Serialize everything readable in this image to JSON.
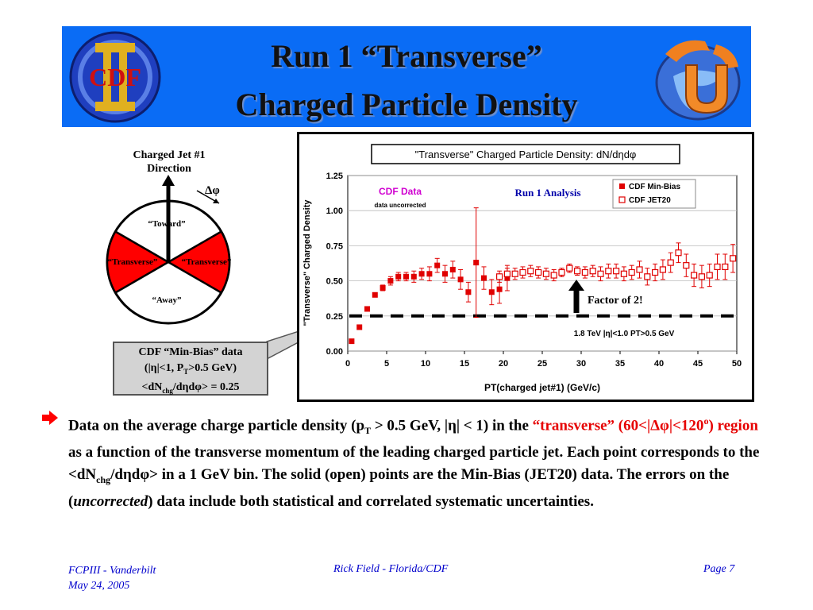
{
  "title": {
    "line1": "Run 1 “Transverse”",
    "line2": "Charged Particle Density"
  },
  "diagram": {
    "jet_direction_line1": "Charged Jet #1",
    "jet_direction_line2": "Direction",
    "dphi": "Δφ",
    "toward": "“Toward”",
    "away": "“Away”",
    "transverse_left": "“Transverse”",
    "transverse_right": "“Transverse”"
  },
  "callout": {
    "line1": "CDF “Min-Bias” data",
    "line2a": "(|η|<1, P",
    "line2sub": "T",
    "line2b": ">0.5 GeV)",
    "line3a": "<dN",
    "line3sub": "chg",
    "line3b": "/dηdφ> = 0.25"
  },
  "chart_data": {
    "type": "scatter",
    "title": "\"Transverse\" Charged Particle Density: dN/dηdφ",
    "xlabel": "PT(charged jet#1)  (GeV/c)",
    "ylabel": "\"Transverse\" Charged Density",
    "xlim": [
      0,
      50
    ],
    "ylim": [
      0,
      1.25
    ],
    "xticks": [
      "0",
      "5",
      "10",
      "15",
      "20",
      "25",
      "30",
      "35",
      "40",
      "45",
      "50"
    ],
    "yticks": [
      "0.00",
      "0.25",
      "0.50",
      "0.75",
      "1.00",
      "1.25"
    ],
    "legend": [
      "CDF Min-Bias",
      "CDF JET20"
    ],
    "legend_position": "top-right",
    "annotations": {
      "cdf_data": "CDF Data",
      "uncorrected": "data uncorrected",
      "run1": "Run 1 Analysis",
      "factor": "Factor of 2!",
      "cuts": "1.8 TeV |η|<1.0 PT>0.5 GeV"
    },
    "reference_line": 0.25,
    "series": [
      {
        "name": "CDF Min-Bias",
        "x": [
          0.5,
          1.5,
          2.5,
          3.5,
          4.5,
          5.5,
          6.5,
          7.5,
          8.5,
          9.5,
          10.5,
          11.5,
          12.5,
          13.5,
          14.5,
          15.5,
          16.5,
          17.5,
          18.5,
          19.5,
          20.5
        ],
        "y": [
          0.07,
          0.17,
          0.3,
          0.4,
          0.45,
          0.5,
          0.53,
          0.53,
          0.53,
          0.55,
          0.55,
          0.61,
          0.55,
          0.58,
          0.51,
          0.42,
          0.63,
          0.52,
          0.42,
          0.44,
          0.52
        ],
        "err": [
          0.0,
          0.0,
          0.0,
          0.01,
          0.02,
          0.03,
          0.03,
          0.03,
          0.04,
          0.04,
          0.05,
          0.05,
          0.06,
          0.06,
          0.07,
          0.07,
          0.39,
          0.08,
          0.09,
          0.1,
          0.09
        ]
      },
      {
        "name": "CDF JET20",
        "x": [
          19.5,
          20.5,
          21.5,
          22.5,
          23.5,
          24.5,
          25.5,
          26.5,
          27.5,
          28.5,
          29.5,
          30.5,
          31.5,
          32.5,
          33.5,
          34.5,
          35.5,
          36.5,
          37.5,
          38.5,
          39.5,
          40.5,
          41.5,
          42.5,
          43.5,
          44.5,
          45.5,
          46.5,
          47.5,
          48.5,
          49.5
        ],
        "y": [
          0.53,
          0.55,
          0.55,
          0.56,
          0.57,
          0.56,
          0.55,
          0.54,
          0.56,
          0.59,
          0.57,
          0.56,
          0.57,
          0.55,
          0.57,
          0.57,
          0.55,
          0.56,
          0.58,
          0.53,
          0.56,
          0.58,
          0.63,
          0.7,
          0.61,
          0.54,
          0.53,
          0.54,
          0.6,
          0.6,
          0.66
        ],
        "err": [
          0.04,
          0.04,
          0.04,
          0.04,
          0.04,
          0.04,
          0.04,
          0.04,
          0.03,
          0.03,
          0.03,
          0.04,
          0.04,
          0.05,
          0.05,
          0.05,
          0.05,
          0.05,
          0.06,
          0.06,
          0.06,
          0.07,
          0.07,
          0.07,
          0.08,
          0.08,
          0.08,
          0.08,
          0.09,
          0.09,
          0.1
        ]
      }
    ]
  },
  "bullet": {
    "p1": "Data on the average charge particle density (p",
    "p1sub": "T",
    "p2": " > 0.5 GeV, |η| < 1) in the ",
    "red1": "“transverse” (60<|Δφ|<120",
    "red1sup": "o",
    "red2": ") region",
    "p3": " as a function of the transverse momentum of the leading charged particle jet. Each point corresponds to the <dN",
    "p3sub": "chg",
    "p4": "/dηdφ>  in a 1 GeV bin. The solid (open) points are the Min-Bias (JET20) data. The errors on the (",
    "p4i": "uncorrected",
    "p5": ") data include both statistical and correlated systematic uncertainties."
  },
  "footer": {
    "left1": "FCPIII - Vanderbilt",
    "left2": "May 24, 2005",
    "center": "Rick Field - Florida/CDF",
    "right": "Page 7"
  },
  "colors": {
    "banner": "#0a6cf5",
    "transverse_fill": "#ff0000",
    "minbias": "#e00000",
    "callout_bg": "#d3d3d3",
    "footer": "#0000cc"
  }
}
